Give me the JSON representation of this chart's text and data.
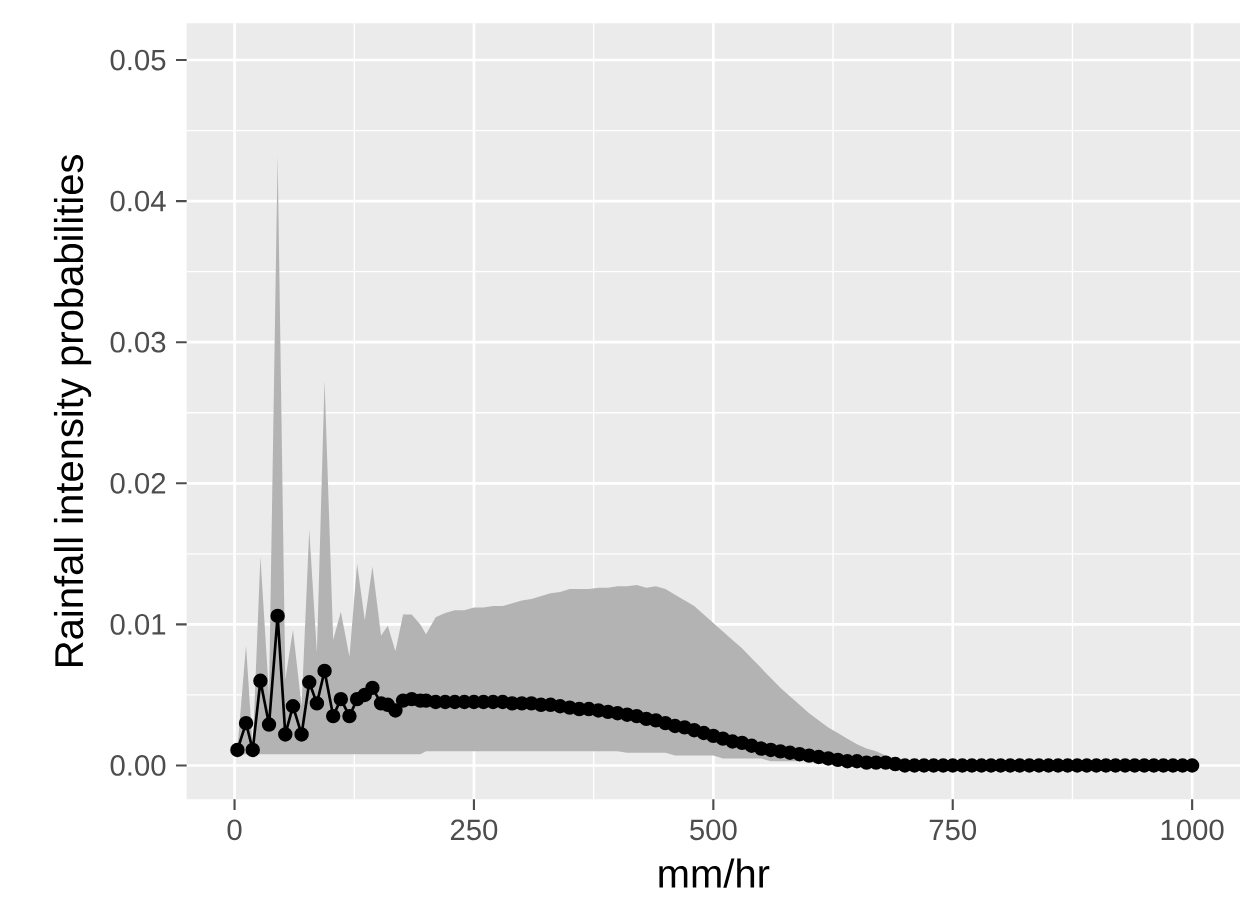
{
  "chart_data": {
    "type": "line",
    "xlabel": "mm/hr",
    "ylabel": "Rainfall intensity probabilities",
    "x": [
      3,
      12,
      19,
      27,
      36,
      45,
      53,
      61,
      70,
      78,
      86,
      94,
      103,
      111,
      120,
      128,
      136,
      144,
      153,
      160,
      168,
      176,
      185,
      194,
      200,
      210,
      220,
      230,
      240,
      250,
      260,
      270,
      280,
      290,
      300,
      310,
      320,
      330,
      340,
      350,
      360,
      370,
      380,
      390,
      400,
      410,
      420,
      430,
      440,
      450,
      460,
      470,
      480,
      490,
      500,
      510,
      520,
      530,
      540,
      550,
      560,
      570,
      580,
      590,
      600,
      610,
      620,
      630,
      640,
      650,
      660,
      670,
      680,
      690,
      700,
      710,
      720,
      730,
      740,
      750,
      760,
      770,
      780,
      790,
      800,
      810,
      820,
      830,
      840,
      850,
      860,
      870,
      880,
      890,
      900,
      910,
      920,
      930,
      940,
      950,
      960,
      970,
      980,
      990,
      1000
    ],
    "series": [
      {
        "color": "#000000",
        "values": [
          0.0011,
          0.003,
          0.0011,
          0.006,
          0.0029,
          0.0106,
          0.0022,
          0.0042,
          0.0022,
          0.0059,
          0.0044,
          0.0067,
          0.0035,
          0.0047,
          0.0035,
          0.0047,
          0.005,
          0.0055,
          0.0044,
          0.0043,
          0.0039,
          0.0046,
          0.0047,
          0.0046,
          0.0046,
          0.0045,
          0.0045,
          0.0045,
          0.0045,
          0.0045,
          0.0045,
          0.0045,
          0.0045,
          0.0044,
          0.0044,
          0.0044,
          0.0043,
          0.0043,
          0.0042,
          0.0041,
          0.004,
          0.004,
          0.0039,
          0.0038,
          0.0037,
          0.0036,
          0.0035,
          0.0033,
          0.0032,
          0.003,
          0.0028,
          0.0027,
          0.0025,
          0.0023,
          0.0021,
          0.0019,
          0.0017,
          0.0016,
          0.0014,
          0.0012,
          0.0011,
          0.001,
          0.0009,
          0.0008,
          0.0007,
          0.0006,
          0.0005,
          0.0004,
          0.0003,
          0.0003,
          0.0002,
          0.0002,
          0.0002,
          0.0001,
          0,
          0,
          0,
          0,
          0,
          0,
          0,
          0,
          0,
          0,
          0,
          0,
          0,
          0,
          0,
          0,
          0,
          0,
          0,
          0,
          0,
          0,
          0,
          0,
          0,
          0,
          0,
          0,
          0,
          0,
          0
        ],
        "lower": [
          0.0008,
          0.0008,
          0.0008,
          0.0008,
          0.0008,
          0.0008,
          0.0008,
          0.0008,
          0.0008,
          0.0008,
          0.0008,
          0.0008,
          0.0008,
          0.0008,
          0.0008,
          0.0008,
          0.0008,
          0.0008,
          0.0008,
          0.0008,
          0.0008,
          0.0008,
          0.0008,
          0.0008,
          0.001,
          0.001,
          0.001,
          0.001,
          0.001,
          0.001,
          0.001,
          0.001,
          0.001,
          0.001,
          0.001,
          0.001,
          0.001,
          0.001,
          0.001,
          0.001,
          0.001,
          0.001,
          0.001,
          0.001,
          0.001,
          0.0009,
          0.0009,
          0.0009,
          0.0009,
          0.0009,
          0.0007,
          0.0007,
          0.0007,
          0.0007,
          0.0007,
          0.0005,
          0.0005,
          0.0005,
          0.0005,
          0.0005,
          0.0003,
          0.0003,
          0.0003,
          0.0003,
          0.0003,
          0.0001,
          0.0001,
          0.0001,
          0.0001,
          0.0001,
          0,
          0,
          0,
          0,
          0,
          0,
          0,
          0,
          0,
          0,
          0,
          0,
          0,
          0,
          0,
          0,
          0,
          0,
          0,
          0,
          0,
          0,
          0,
          0,
          0,
          0,
          0,
          0,
          0,
          0,
          0,
          0,
          0,
          0,
          0
        ],
        "upper": [
          0.0012,
          0.0085,
          0.0012,
          0.0148,
          0.005,
          0.0432,
          0.0061,
          0.0096,
          0.0042,
          0.0167,
          0.008,
          0.0273,
          0.0089,
          0.0109,
          0.0077,
          0.0143,
          0.0103,
          0.0141,
          0.0092,
          0.0099,
          0.0081,
          0.0107,
          0.0107,
          0.01,
          0.0093,
          0.0105,
          0.0108,
          0.011,
          0.011,
          0.0112,
          0.0112,
          0.0113,
          0.0113,
          0.0115,
          0.0117,
          0.0118,
          0.012,
          0.0122,
          0.0123,
          0.0125,
          0.0125,
          0.0125,
          0.0126,
          0.0126,
          0.0127,
          0.0127,
          0.0128,
          0.0126,
          0.0127,
          0.0125,
          0.0121,
          0.0117,
          0.0113,
          0.0107,
          0.0101,
          0.0095,
          0.0089,
          0.0083,
          0.0076,
          0.0069,
          0.0062,
          0.0055,
          0.0049,
          0.0043,
          0.0037,
          0.0032,
          0.0027,
          0.0023,
          0.0019,
          0.0015,
          0.0012,
          0.001,
          0.0007,
          0.0005,
          0.0003,
          0.0002,
          0.0001,
          0,
          0,
          0,
          0,
          0,
          0,
          0,
          0,
          0,
          0,
          0,
          0,
          0,
          0,
          0,
          0,
          0,
          0,
          0,
          0,
          0,
          0,
          0,
          0,
          0,
          0,
          0,
          0
        ]
      }
    ],
    "xlim": [
      -50,
      1050
    ],
    "ylim": [
      -0.0024,
      0.0526
    ],
    "xticks": [
      0,
      250,
      500,
      750,
      1000
    ],
    "yticks": [
      {
        "value": 0,
        "label": "0.00"
      },
      {
        "value": 0.01,
        "label": "0.01"
      },
      {
        "value": 0.02,
        "label": "0.02"
      },
      {
        "value": 0.03,
        "label": "0.03"
      },
      {
        "value": 0.04,
        "label": "0.04"
      },
      {
        "value": 0.05,
        "label": "0.05"
      }
    ],
    "grid": true,
    "marker": "circle",
    "line_style": "solid"
  }
}
